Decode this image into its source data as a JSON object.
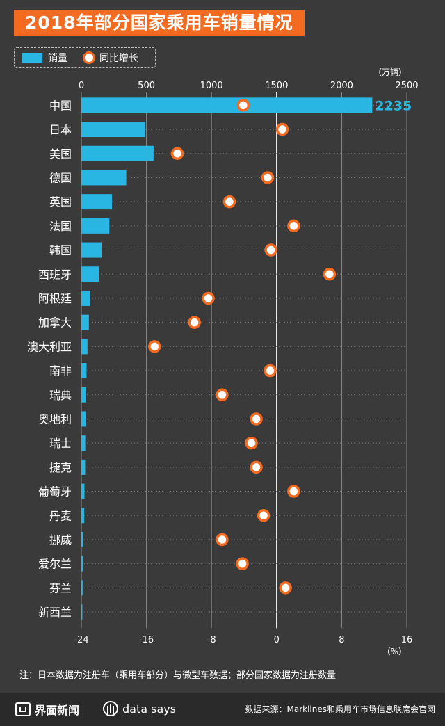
{
  "title": "2018年部分国家乘用车销量情况",
  "legend": {
    "bar_label": "销量",
    "dot_label": "同比增长"
  },
  "colors": {
    "bar": "#29b6e3",
    "dot_border": "#f26b21",
    "accent": "#f26b21",
    "background": "#3a3a3a"
  },
  "chart_data": {
    "type": "bar",
    "title": "2018年部分国家乘用车销量情况",
    "categories": [
      "中国",
      "日本",
      "美国",
      "德国",
      "英国",
      "法国",
      "韩国",
      "西班牙",
      "阿根廷",
      "加拿大",
      "澳大利亚",
      "南非",
      "瑞典",
      "奥地利",
      "瑞士",
      "捷克",
      "葡萄牙",
      "丹麦",
      "挪威",
      "爱尔兰",
      "芬兰",
      "新西兰"
    ],
    "series": [
      {
        "name": "销量",
        "axis": "top",
        "unit": "（万辆）",
        "values": [
          2235,
          490,
          555,
          345,
          235,
          215,
          155,
          135,
          65,
          58,
          47,
          40,
          35,
          33,
          30,
          29,
          24,
          22,
          15,
          11,
          10,
          8
        ]
      },
      {
        "name": "同比增长",
        "axis": "bottom",
        "unit": "（%）",
        "values": [
          -4.1,
          0.7,
          -12.2,
          -1.1,
          -5.8,
          2.1,
          -0.7,
          6.5,
          -8.4,
          -10.1,
          -15.0,
          -0.8,
          -6.7,
          -2.5,
          -3.1,
          -2.5,
          2.1,
          -1.6,
          -6.7,
          -4.2,
          1.1,
          null
        ]
      }
    ],
    "top_axis": {
      "ylim": [
        0,
        2500
      ],
      "ticks": [
        0,
        500,
        1000,
        1500,
        2000,
        2500
      ]
    },
    "bottom_axis": {
      "ylim": [
        -24,
        16
      ],
      "ticks": [
        -24,
        -16,
        -8,
        0,
        8,
        16
      ]
    },
    "data_label": "2235",
    "grid": true,
    "legend_position": "top-left"
  },
  "note": "注：日本数据为注册车（乘用车部分）与微型车数据；部分国家数据为注册数量",
  "footer": {
    "brand1": "界面新闻",
    "brand2": "data says",
    "source": "数据来源：Marklines和乘用车市场信息联席会官网"
  }
}
